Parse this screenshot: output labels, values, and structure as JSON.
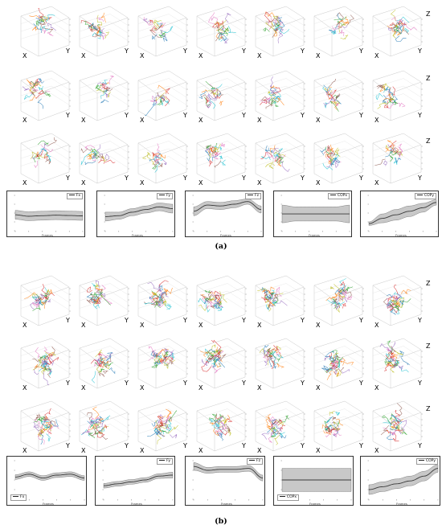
{
  "captions": {
    "a": "(a)",
    "b": "(b)"
  },
  "axis_letters": {
    "x": "X",
    "y": "Y",
    "z": "Z"
  },
  "timeseries_xlabel": "Frames",
  "series_labels_a": [
    "Fx",
    "Fy",
    "Fz",
    "COPx",
    "COPy"
  ],
  "series_labels_b": [
    "Fx",
    "Fy",
    "Fz",
    "COPx",
    "COPy"
  ],
  "colors": {
    "line": "#3a3a3a",
    "band": "#c8c8c8",
    "traj": [
      "#1f77b4",
      "#ff7f0e",
      "#2ca02c",
      "#d62728",
      "#9467bd",
      "#8c564b",
      "#e377c2",
      "#17becf",
      "#bcbd22"
    ]
  },
  "chart_data": [
    {
      "type": "area",
      "panel": "a",
      "series": [
        {
          "name": "Fx",
          "x": [
            0,
            20,
            40,
            60,
            80,
            100
          ],
          "mean": [
            -0.1,
            -0.18,
            -0.15,
            -0.12,
            -0.14,
            -0.16
          ],
          "band": [
            0.25,
            0.25,
            0.25,
            0.25,
            0.25,
            0.25
          ]
        }
      ],
      "xlabel": "Frames"
    },
    {
      "type": "area",
      "panel": "a",
      "series": [
        {
          "name": "Fy",
          "x": [
            0,
            20,
            40,
            60,
            80,
            100
          ],
          "mean": [
            -0.2,
            -0.15,
            0.05,
            0.2,
            0.35,
            0.25
          ],
          "band": [
            0.25,
            0.2,
            0.2,
            0.2,
            0.22,
            0.25
          ]
        }
      ],
      "xlabel": "Frames"
    },
    {
      "type": "area",
      "panel": "a",
      "series": [
        {
          "name": "Fz",
          "x": [
            0,
            20,
            40,
            60,
            80,
            100
          ],
          "mean": [
            0.1,
            0.45,
            0.4,
            0.5,
            0.65,
            0.2
          ],
          "band": [
            0.25,
            0.2,
            0.2,
            0.2,
            0.15,
            0.2
          ]
        }
      ],
      "xlabel": "Frames"
    },
    {
      "type": "area",
      "panel": "a",
      "series": [
        {
          "name": "COPx",
          "x": [
            0,
            20,
            40,
            60,
            80,
            100
          ],
          "mean": [
            -0.05,
            -0.05,
            -0.05,
            -0.05,
            -0.05,
            -0.05
          ],
          "band": [
            0.5,
            0.4,
            0.4,
            0.4,
            0.4,
            0.5
          ]
        }
      ],
      "xlabel": "Frames"
    },
    {
      "type": "area",
      "panel": "a",
      "series": [
        {
          "name": "COPy",
          "x": [
            0,
            20,
            40,
            60,
            80,
            100
          ],
          "mean": [
            -0.6,
            -0.3,
            -0.1,
            0.1,
            0.3,
            0.6
          ],
          "band": [
            0.1,
            0.25,
            0.3,
            0.3,
            0.25,
            0.15
          ]
        }
      ],
      "xlabel": "Frames"
    },
    {
      "type": "area",
      "panel": "b",
      "series": [
        {
          "name": "Fx",
          "x": [
            0,
            20,
            40,
            60,
            80,
            100
          ],
          "mean": [
            0.15,
            0.3,
            0.1,
            0.25,
            0.3,
            0.1
          ],
          "band": [
            0.12,
            0.12,
            0.12,
            0.12,
            0.12,
            0.12
          ]
        }
      ],
      "xlabel": "Frames"
    },
    {
      "type": "area",
      "panel": "b",
      "series": [
        {
          "name": "Fy",
          "x": [
            0,
            20,
            40,
            60,
            80,
            100
          ],
          "mean": [
            -0.3,
            -0.2,
            -0.1,
            0.0,
            0.2,
            0.25
          ],
          "band": [
            0.12,
            0.12,
            0.12,
            0.12,
            0.12,
            0.15
          ]
        }
      ],
      "xlabel": "Frames"
    },
    {
      "type": "area",
      "panel": "b",
      "series": [
        {
          "name": "Fz",
          "x": [
            0,
            20,
            40,
            60,
            80,
            100
          ],
          "mean": [
            0.7,
            0.5,
            0.55,
            0.55,
            0.6,
            0.1
          ],
          "band": [
            0.2,
            0.15,
            0.15,
            0.15,
            0.15,
            0.15
          ]
        }
      ],
      "xlabel": "Frames"
    },
    {
      "type": "area",
      "panel": "b",
      "series": [
        {
          "name": "COPx",
          "x": [
            0,
            20,
            40,
            60,
            80,
            100
          ],
          "mean": [
            0.0,
            0.0,
            0.0,
            0.0,
            0.0,
            0.0
          ],
          "band": [
            0.6,
            0.6,
            0.6,
            0.6,
            0.6,
            0.6
          ]
        }
      ],
      "xlabel": "Frames"
    },
    {
      "type": "area",
      "panel": "b",
      "series": [
        {
          "name": "COPy",
          "x": [
            0,
            20,
            40,
            60,
            80,
            100
          ],
          "mean": [
            -0.5,
            -0.35,
            -0.2,
            -0.05,
            0.2,
            0.6
          ],
          "band": [
            0.25,
            0.25,
            0.25,
            0.25,
            0.25,
            0.2
          ]
        }
      ],
      "xlabel": "Frames"
    }
  ]
}
